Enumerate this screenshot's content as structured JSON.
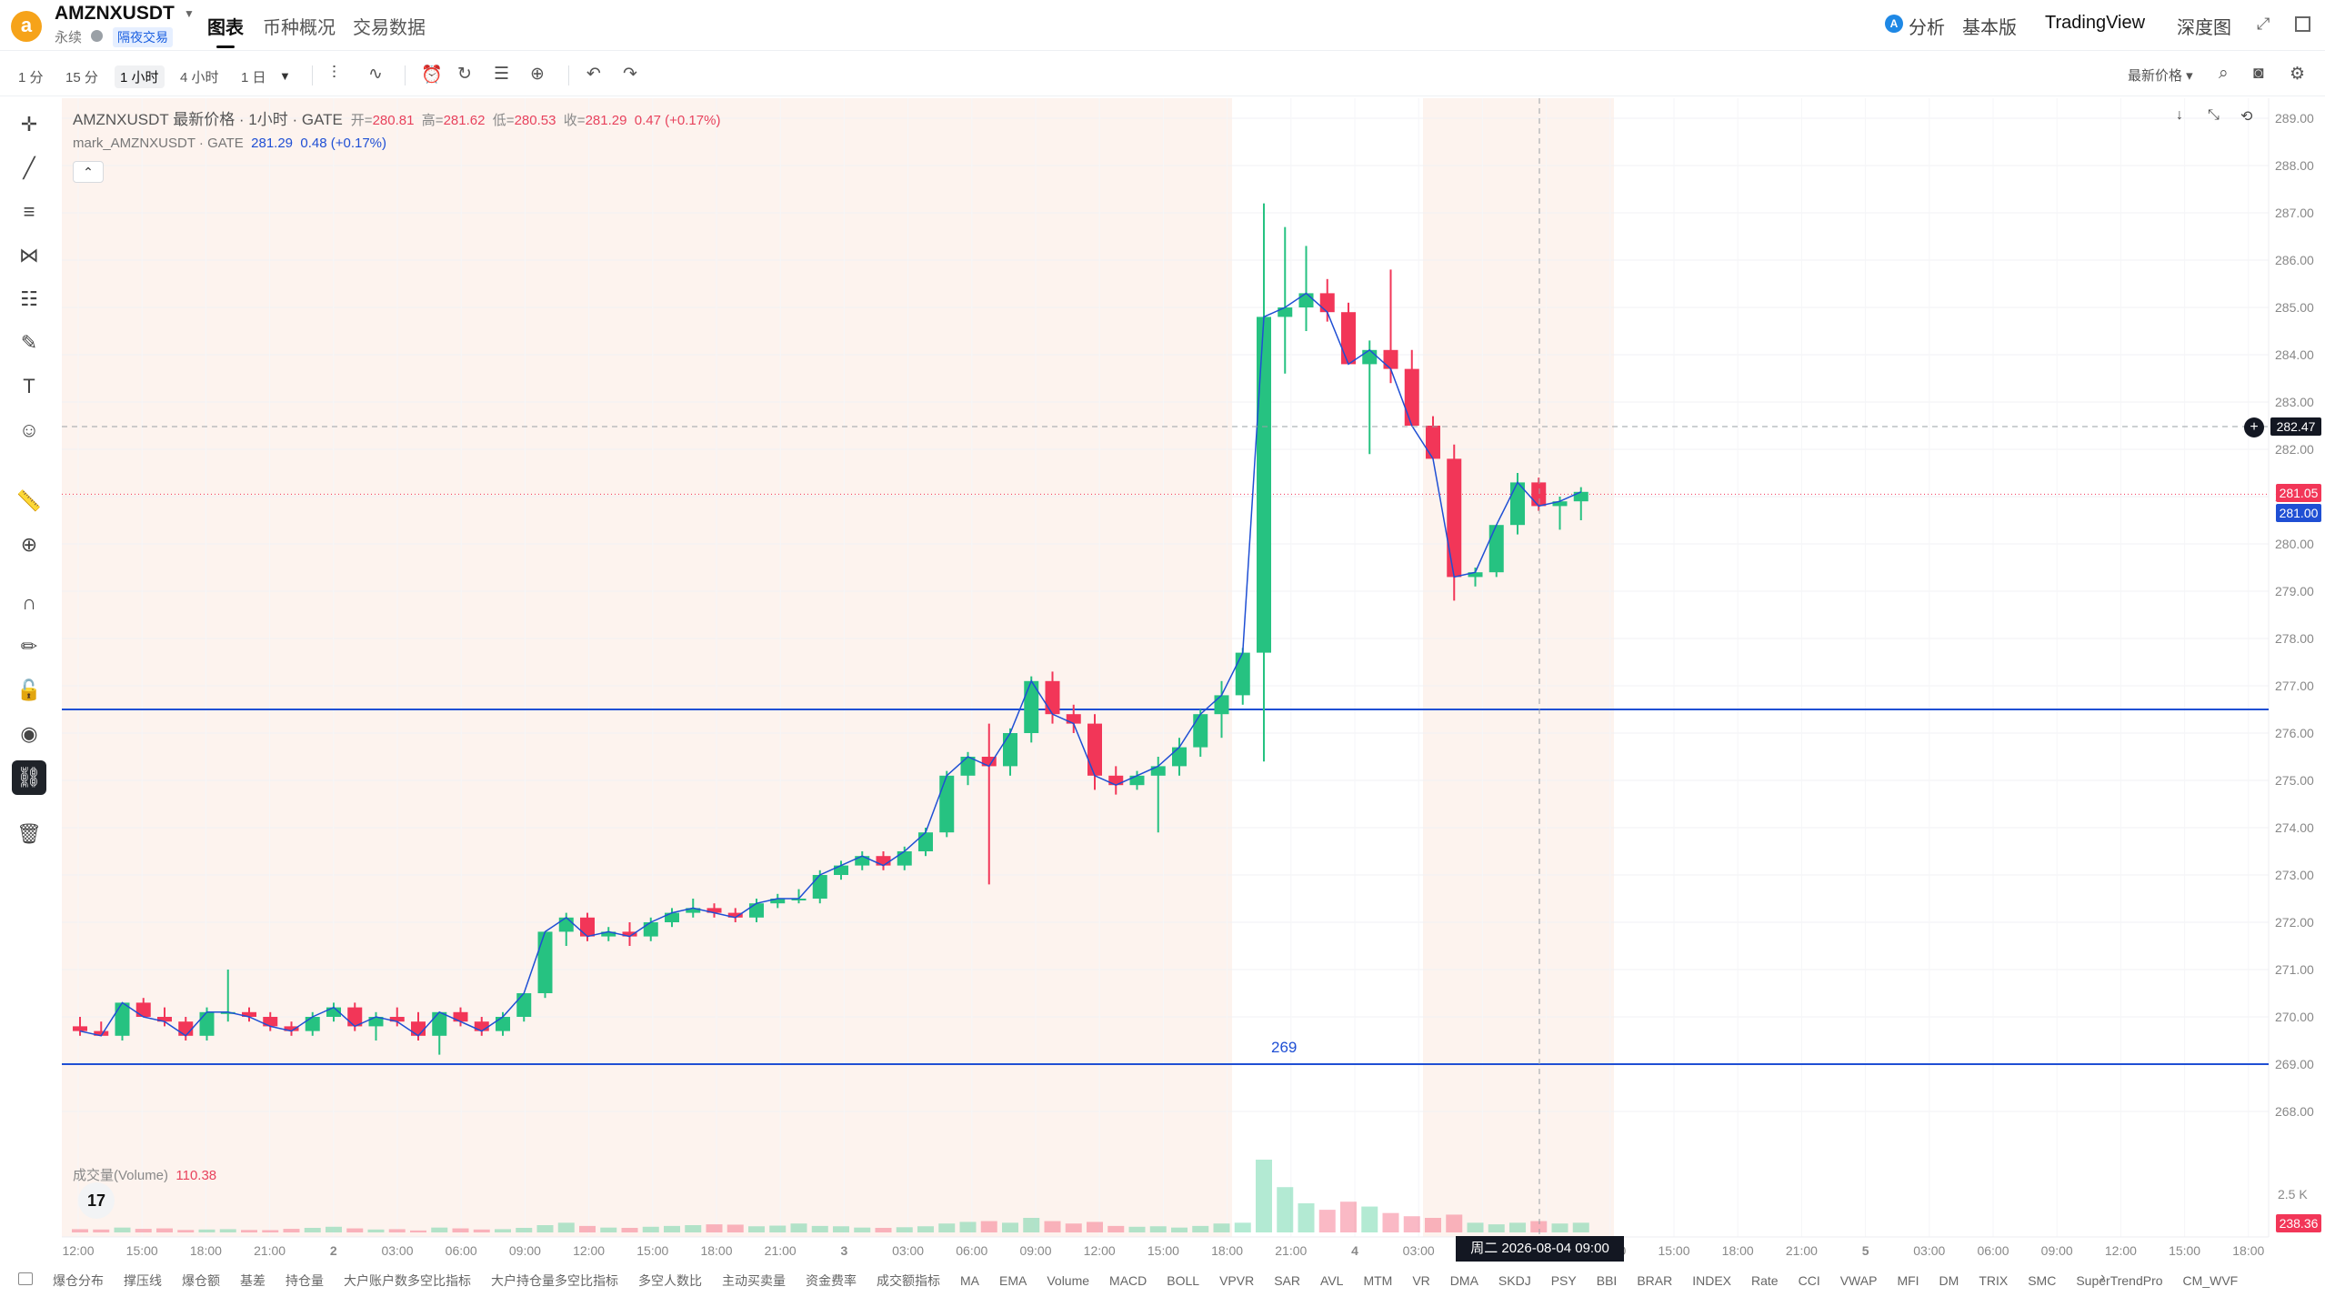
{
  "header": {
    "coin_icon_glyph": "a",
    "symbol": "AMZNXUSDT",
    "contract_type": "永续",
    "overnight_badge": "隔夜交易",
    "tabs": [
      "图表",
      "币种概况",
      "交易数据"
    ],
    "analysis_label": "分析",
    "analysis_icon_glyph": "A",
    "basic_label": "基本版",
    "tradingview_label": "TradingView",
    "depth_label": "深度图"
  },
  "toolbar": {
    "intervals": [
      "1 分",
      "15 分",
      "1 小时",
      "4 小时",
      "1 日"
    ],
    "selected_interval": "1 小时",
    "price_type": "最新价格"
  },
  "legend": {
    "title": "AMZNXUSDT 最新价格 · 1小时 · GATE",
    "open_label": "开=",
    "open": "280.81",
    "high_label": "高=",
    "high": "281.62",
    "low_label": "低=",
    "low": "280.53",
    "close_label": "收=",
    "close": "281.29",
    "change": "0.47 (+0.17%)",
    "mark_name": "mark_AMZNXUSDT · GATE",
    "mark_value": "281.29",
    "mark_change": "0.48 (+0.17%)",
    "volume_name": "成交量(Volume)",
    "volume_value": "110.38",
    "tv_logo_glyph": "17"
  },
  "drawings": {
    "line_269_label": "269",
    "line_269_price": 269,
    "line_276_price": 276.5
  },
  "crosshair": {
    "price": "282.47",
    "time": "周二 2026-08-04   09:00"
  },
  "price_axis": {
    "ticks": [
      "289.00",
      "288.00",
      "287.00",
      "286.00",
      "285.00",
      "284.00",
      "283.00",
      "282.00",
      "281.00",
      "280.00",
      "279.00",
      "278.00",
      "277.00",
      "276.00",
      "275.00",
      "274.00",
      "273.00",
      "272.00",
      "271.00",
      "270.00",
      "269.00",
      "268.00"
    ],
    "last_price": "281.05",
    "mark_price": "281.00",
    "volume_tick": "2.5 K",
    "volume_last": "238.36"
  },
  "time_axis": {
    "ticks": [
      "12:00",
      "15:00",
      "18:00",
      "21:00",
      "2",
      "03:00",
      "06:00",
      "09:00",
      "12:00",
      "15:00",
      "18:00",
      "21:00",
      "3",
      "03:00",
      "06:00",
      "09:00",
      "12:00",
      "15:00",
      "18:00",
      "21:00",
      "4",
      "03:00",
      "06:00",
      "09:00",
      "12:00",
      "15:00",
      "18:00",
      "21:00",
      "5",
      "03:00",
      "06:00",
      "09:00",
      "12:00",
      "15:00",
      "18:00"
    ]
  },
  "indicators": [
    "爆仓分布",
    "撑压线",
    "爆仓额",
    "基差",
    "持仓量",
    "大户账户数多空比指标",
    "大户持仓量多空比指标",
    "多空人数比",
    "主动买卖量",
    "资金费率",
    "成交额指标",
    "MA",
    "EMA",
    "Volume",
    "MACD",
    "BOLL",
    "VPVR",
    "SAR",
    "AVL",
    "MTM",
    "VR",
    "DMA",
    "SKDJ",
    "PSY",
    "BBI",
    "BRAR",
    "INDEX",
    "Rate",
    "CCI",
    "VWAP",
    "MFI",
    "DM",
    "TRIX",
    "SMC",
    "SuperTrendPro",
    "CM_WVF"
  ],
  "colors": {
    "up": "#26c281",
    "down": "#f23658",
    "drawing_line": "#1f4fd4",
    "session_shade": "#fdf3ee"
  },
  "chart_data": {
    "type": "candlestick",
    "title": "AMZNXUSDT 最新价格 · 1小时 · GATE",
    "ylim": [
      267.5,
      289.3
    ],
    "candles": [
      [
        269.8,
        270.0,
        269.6,
        269.7
      ],
      [
        269.7,
        269.9,
        269.6,
        269.6
      ],
      [
        269.6,
        270.3,
        269.5,
        270.3
      ],
      [
        270.3,
        270.4,
        270.0,
        270.0
      ],
      [
        270.0,
        270.2,
        269.8,
        269.9
      ],
      [
        269.9,
        270.0,
        269.5,
        269.6
      ],
      [
        269.6,
        270.2,
        269.5,
        270.1
      ],
      [
        270.1,
        271.0,
        269.9,
        270.1
      ],
      [
        270.1,
        270.2,
        269.9,
        270.0
      ],
      [
        270.0,
        270.1,
        269.7,
        269.8
      ],
      [
        269.8,
        269.9,
        269.6,
        269.7
      ],
      [
        269.7,
        270.1,
        269.6,
        270.0
      ],
      [
        270.0,
        270.3,
        269.9,
        270.2
      ],
      [
        270.2,
        270.3,
        269.7,
        269.8
      ],
      [
        269.8,
        270.1,
        269.5,
        270.0
      ],
      [
        270.0,
        270.2,
        269.8,
        269.9
      ],
      [
        269.9,
        270.1,
        269.5,
        269.6
      ],
      [
        269.6,
        270.1,
        269.2,
        270.1
      ],
      [
        270.1,
        270.2,
        269.8,
        269.9
      ],
      [
        269.9,
        270.0,
        269.6,
        269.7
      ],
      [
        269.7,
        270.1,
        269.6,
        270.0
      ],
      [
        270.0,
        270.5,
        269.9,
        270.5
      ],
      [
        270.5,
        271.8,
        270.4,
        271.8
      ],
      [
        271.8,
        272.2,
        271.5,
        272.1
      ],
      [
        272.1,
        272.2,
        271.6,
        271.7
      ],
      [
        271.7,
        271.9,
        271.6,
        271.8
      ],
      [
        271.8,
        272.0,
        271.5,
        271.7
      ],
      [
        271.7,
        272.1,
        271.6,
        272.0
      ],
      [
        272.0,
        272.3,
        271.9,
        272.2
      ],
      [
        272.2,
        272.5,
        272.1,
        272.3
      ],
      [
        272.3,
        272.4,
        272.1,
        272.2
      ],
      [
        272.2,
        272.3,
        272.0,
        272.1
      ],
      [
        272.1,
        272.5,
        272.0,
        272.4
      ],
      [
        272.4,
        272.6,
        272.3,
        272.5
      ],
      [
        272.5,
        272.7,
        272.4,
        272.5
      ],
      [
        272.5,
        273.1,
        272.4,
        273.0
      ],
      [
        273.0,
        273.3,
        272.9,
        273.2
      ],
      [
        273.2,
        273.5,
        273.1,
        273.4
      ],
      [
        273.4,
        273.5,
        273.1,
        273.2
      ],
      [
        273.2,
        273.6,
        273.1,
        273.5
      ],
      [
        273.5,
        274.0,
        273.4,
        273.9
      ],
      [
        273.9,
        275.2,
        273.8,
        275.1
      ],
      [
        275.1,
        275.6,
        274.9,
        275.5
      ],
      [
        275.5,
        276.2,
        272.8,
        275.3
      ],
      [
        275.3,
        276.1,
        275.1,
        276.0
      ],
      [
        276.0,
        277.2,
        275.8,
        277.1
      ],
      [
        277.1,
        277.3,
        276.2,
        276.4
      ],
      [
        276.4,
        276.6,
        276.0,
        276.2
      ],
      [
        276.2,
        276.4,
        274.8,
        275.1
      ],
      [
        275.1,
        275.3,
        274.7,
        274.9
      ],
      [
        274.9,
        275.2,
        274.8,
        275.1
      ],
      [
        275.1,
        275.5,
        273.9,
        275.3
      ],
      [
        275.3,
        275.9,
        275.1,
        275.7
      ],
      [
        275.7,
        276.5,
        275.5,
        276.4
      ],
      [
        276.4,
        277.1,
        275.9,
        276.8
      ],
      [
        276.8,
        277.8,
        276.6,
        277.7
      ],
      [
        277.7,
        287.2,
        275.4,
        284.8
      ],
      [
        284.8,
        286.7,
        283.6,
        285.0
      ],
      [
        285.0,
        286.3,
        284.5,
        285.3
      ],
      [
        285.3,
        285.6,
        284.7,
        284.9
      ],
      [
        284.9,
        285.1,
        283.8,
        283.8
      ],
      [
        283.8,
        284.3,
        281.9,
        284.1
      ],
      [
        284.1,
        285.8,
        283.4,
        283.7
      ],
      [
        283.7,
        284.1,
        282.5,
        282.5
      ],
      [
        282.5,
        282.7,
        281.8,
        281.8
      ],
      [
        281.8,
        282.1,
        278.8,
        279.3
      ],
      [
        279.3,
        279.5,
        279.1,
        279.4
      ],
      [
        279.4,
        280.4,
        279.3,
        280.4
      ],
      [
        280.4,
        281.5,
        280.2,
        281.3
      ],
      [
        281.3,
        281.4,
        280.7,
        280.8
      ],
      [
        280.8,
        281.0,
        280.3,
        280.9
      ],
      [
        280.9,
        281.2,
        280.5,
        281.1
      ]
    ],
    "volumes": [
      20,
      18,
      30,
      22,
      25,
      15,
      18,
      20,
      15,
      14,
      22,
      28,
      35,
      25,
      18,
      20,
      12,
      30,
      25,
      18,
      20,
      28,
      45,
      60,
      40,
      30,
      28,
      35,
      40,
      45,
      50,
      48,
      38,
      42,
      55,
      40,
      38,
      30,
      28,
      32,
      38,
      55,
      65,
      70,
      60,
      90,
      70,
      55,
      65,
      40,
      35,
      38,
      30,
      40,
      55,
      60,
      450,
      280,
      180,
      140,
      190,
      160,
      120,
      100,
      90,
      110,
      60,
      50,
      60,
      70,
      55,
      60
    ]
  }
}
